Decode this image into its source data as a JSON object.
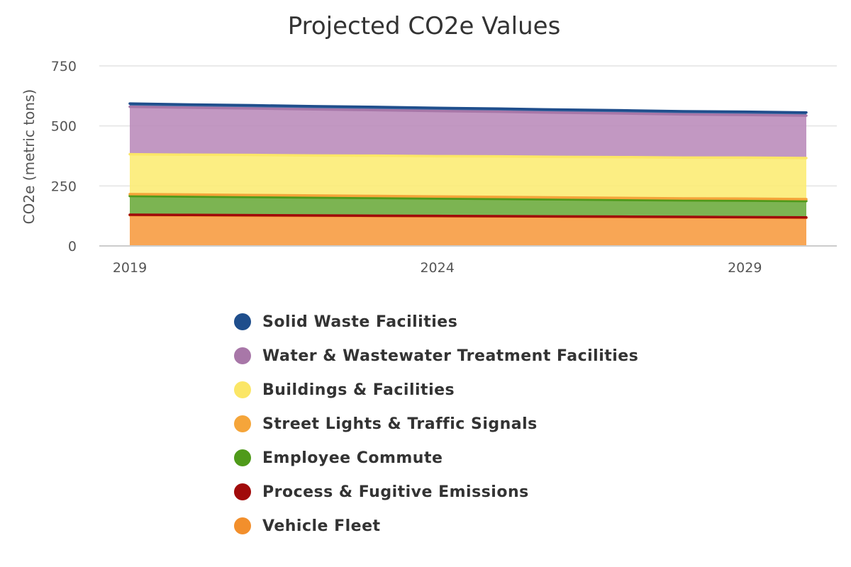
{
  "chart_data": {
    "type": "area",
    "stacked": true,
    "title": "Projected CO2e Values",
    "xlabel": "",
    "ylabel": "CO2e (metric tons)",
    "x": [
      2019,
      2020,
      2021,
      2022,
      2023,
      2024,
      2025,
      2026,
      2027,
      2028,
      2029,
      2030
    ],
    "xticks": [
      "2019",
      "2024",
      "2029"
    ],
    "yticks": [
      "0",
      "250",
      "500",
      "750"
    ],
    "ylim": [
      0,
      750
    ],
    "legend_position": "bottom",
    "series": [
      {
        "name": "Vehicle Fleet",
        "color": "#f28f2c",
        "fill": "#f79a3e",
        "values": [
          128,
          127,
          126,
          125,
          124,
          123,
          122,
          121,
          120,
          119,
          118,
          117
        ]
      },
      {
        "name": "Process & Fugitive Emissions",
        "color": "#a10a0a",
        "fill": "#b51a1a",
        "values": [
          2,
          2,
          2,
          2,
          2,
          2,
          2,
          2,
          2,
          2,
          2,
          2
        ]
      },
      {
        "name": "Employee Commute",
        "color": "#4f9a1a",
        "fill": "#6aaa3a",
        "values": [
          78,
          77,
          76,
          75,
          74,
          73,
          72,
          71,
          70,
          69,
          69,
          68
        ]
      },
      {
        "name": "Street Lights & Traffic Signals",
        "color": "#f5a53a",
        "fill": "#f6b84a",
        "values": [
          8,
          8,
          8,
          8,
          8,
          8,
          8,
          8,
          8,
          8,
          8,
          8
        ]
      },
      {
        "name": "Buildings & Facilities",
        "color": "#fbe666",
        "fill": "#fcec72",
        "values": [
          166,
          166,
          167,
          167,
          168,
          168,
          169,
          169,
          170,
          170,
          171,
          171
        ]
      },
      {
        "name": "Water & Wastewater Treatment Facilities",
        "color": "#a877a8",
        "fill": "#b98ab9",
        "values": [
          198,
          196,
          194,
          192,
          190,
          188,
          186,
          184,
          182,
          180,
          178,
          177
        ]
      },
      {
        "name": "Solid Waste Facilities",
        "color": "#1f4e8c",
        "fill": "#2a5a9a",
        "values": [
          13,
          13,
          13,
          13,
          13,
          13,
          13,
          13,
          13,
          13,
          13,
          13
        ]
      }
    ]
  },
  "legend": {
    "items": [
      {
        "label": "Solid Waste Facilities",
        "color": "#1f4e8c"
      },
      {
        "label": "Water & Wastewater Treatment Facilities",
        "color": "#a877a8"
      },
      {
        "label": "Buildings & Facilities",
        "color": "#fbe666"
      },
      {
        "label": "Street Lights & Traffic Signals",
        "color": "#f5a53a"
      },
      {
        "label": "Employee Commute",
        "color": "#4f9a1a"
      },
      {
        "label": "Process & Fugitive Emissions",
        "color": "#a10a0a"
      },
      {
        "label": "Vehicle Fleet",
        "color": "#f28f2c"
      }
    ]
  }
}
